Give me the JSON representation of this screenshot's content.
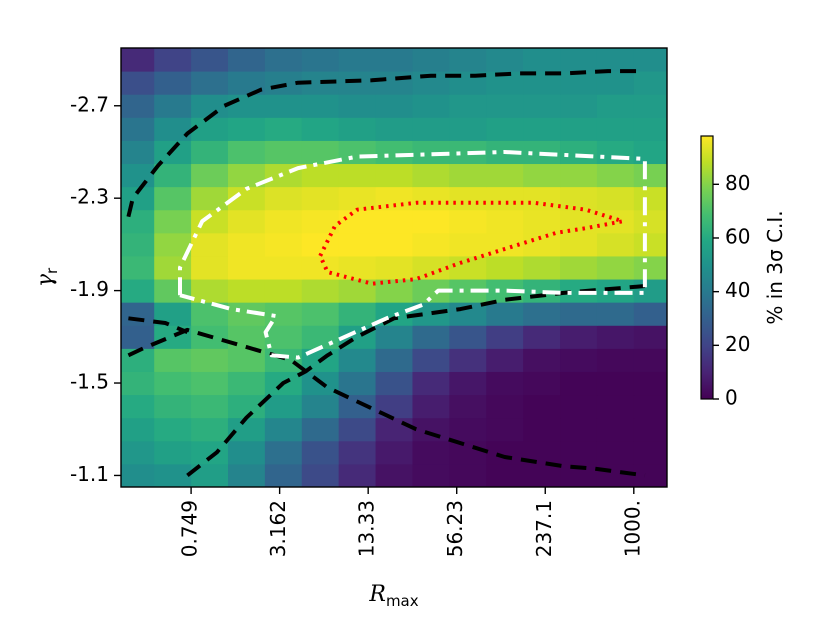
{
  "chart_data": {
    "type": "heatmap",
    "title": "",
    "xlabel": {
      "main": "R",
      "sub": "max"
    },
    "ylabel": {
      "main": "γ",
      "sub": "r"
    },
    "x_tick_labels": [
      "0.749",
      "3.162",
      "13.33",
      "56.23",
      "237.1",
      "1000."
    ],
    "y_tick_labels": [
      "-2.7",
      "-2.3",
      "-1.9",
      "-1.5",
      "-1.1"
    ],
    "x_scale": "log",
    "x_range_log10": [
      -0.6,
      3.1
    ],
    "y_range": [
      -1.05,
      -2.95
    ],
    "colorbar": {
      "label": "% in 3σ C.I.",
      "colormap": "viridis",
      "range": [
        0,
        98
      ],
      "ticks": [
        0,
        20,
        40,
        60,
        80
      ]
    },
    "x_log10_centers": [
      -0.5,
      -0.25,
      0.0,
      0.25,
      0.5,
      0.75,
      1.0,
      1.25,
      1.5,
      1.75,
      2.0,
      2.25,
      2.5,
      2.75,
      3.0
    ],
    "y_centers": [
      -1.1,
      -1.2,
      -1.3,
      -1.4,
      -1.5,
      -1.6,
      -1.7,
      -1.8,
      -1.9,
      -2.0,
      -2.1,
      -2.2,
      -2.3,
      -2.4,
      -2.5,
      -2.6,
      -2.7,
      -2.8,
      -2.9
    ],
    "values": [
      [
        48,
        50,
        55,
        44,
        32,
        22,
        12,
        5,
        3,
        2,
        1,
        1,
        1,
        1,
        1
      ],
      [
        52,
        56,
        58,
        48,
        36,
        25,
        15,
        7,
        3,
        2,
        1,
        1,
        1,
        1,
        1
      ],
      [
        56,
        60,
        62,
        55,
        45,
        34,
        22,
        10,
        5,
        3,
        2,
        1,
        1,
        1,
        1
      ],
      [
        60,
        64,
        66,
        62,
        54,
        44,
        30,
        18,
        8,
        4,
        2,
        1,
        1,
        1,
        1
      ],
      [
        64,
        68,
        70,
        66,
        60,
        50,
        38,
        25,
        12,
        6,
        3,
        2,
        1,
        1,
        1
      ],
      [
        62,
        72,
        74,
        72,
        66,
        58,
        46,
        34,
        22,
        14,
        8,
        4,
        3,
        2,
        2
      ],
      [
        30,
        60,
        68,
        72,
        70,
        66,
        56,
        44,
        34,
        26,
        18,
        12,
        8,
        6,
        5
      ],
      [
        32,
        56,
        70,
        74,
        72,
        70,
        64,
        58,
        52,
        46,
        40,
        36,
        34,
        34,
        30
      ],
      [
        60,
        74,
        86,
        88,
        88,
        86,
        84,
        80,
        76,
        72,
        68,
        64,
        60,
        58,
        54
      ],
      [
        66,
        84,
        94,
        96,
        96,
        96,
        95,
        94,
        92,
        90,
        88,
        86,
        84,
        82,
        80
      ],
      [
        64,
        82,
        94,
        96,
        97,
        98,
        98,
        98,
        97,
        96,
        96,
        95,
        94,
        92,
        90
      ],
      [
        62,
        78,
        90,
        94,
        96,
        97,
        98,
        98,
        98,
        97,
        96,
        95,
        94,
        94,
        92
      ],
      [
        56,
        72,
        84,
        90,
        93,
        94,
        95,
        96,
        95,
        94,
        94,
        94,
        93,
        92,
        90
      ],
      [
        50,
        64,
        76,
        82,
        86,
        88,
        88,
        88,
        86,
        84,
        84,
        82,
        82,
        80,
        78
      ],
      [
        44,
        56,
        64,
        70,
        72,
        72,
        70,
        68,
        66,
        66,
        64,
        64,
        62,
        60,
        58
      ],
      [
        38,
        48,
        56,
        58,
        60,
        58,
        56,
        54,
        54,
        54,
        56,
        56,
        56,
        56,
        56
      ],
      [
        32,
        40,
        48,
        50,
        50,
        50,
        48,
        48,
        50,
        52,
        52,
        52,
        52,
        54,
        54
      ],
      [
        24,
        30,
        36,
        40,
        42,
        44,
        44,
        44,
        46,
        48,
        50,
        50,
        50,
        50,
        52
      ],
      [
        12,
        20,
        26,
        32,
        36,
        38,
        40,
        40,
        42,
        44,
        46,
        48,
        48,
        48,
        48
      ]
    ],
    "contours": [
      {
        "name": "black-dashed-upper",
        "style": "dashed",
        "color": "#000000",
        "points": [
          [
            -0.55,
            -2.22
          ],
          [
            -0.52,
            -2.3
          ],
          [
            -0.35,
            -2.44
          ],
          [
            -0.15,
            -2.58
          ],
          [
            0.1,
            -2.7
          ],
          [
            0.35,
            -2.77
          ],
          [
            0.6,
            -2.8
          ],
          [
            1.1,
            -2.81
          ],
          [
            1.5,
            -2.83
          ],
          [
            1.8,
            -2.83
          ],
          [
            2.1,
            -2.84
          ],
          [
            2.4,
            -2.84
          ],
          [
            2.7,
            -2.85
          ],
          [
            2.95,
            -2.85
          ]
        ]
      },
      {
        "name": "black-dashed-lower",
        "style": "dashed",
        "color": "#000000",
        "points": [
          [
            -0.55,
            -1.78
          ],
          [
            -0.3,
            -1.76
          ],
          [
            -0.15,
            -1.72
          ]
        ]
      },
      {
        "name": "black-dashed-lower-2",
        "style": "dashed",
        "color": "#000000",
        "points": [
          [
            -0.55,
            -1.62
          ],
          [
            -0.45,
            -1.65
          ],
          [
            -0.15,
            -1.73
          ],
          [
            0.55,
            -1.6
          ],
          [
            0.8,
            -1.48
          ],
          [
            1.0,
            -1.42
          ],
          [
            1.4,
            -1.3
          ],
          [
            2.0,
            -1.18
          ],
          [
            2.4,
            -1.14
          ],
          [
            2.6,
            -1.13
          ],
          [
            2.95,
            -1.1
          ]
        ]
      },
      {
        "name": "black-dashed-lower-3",
        "style": "dashed",
        "color": "#000000",
        "points": [
          [
            -0.15,
            -1.1
          ],
          [
            0.05,
            -1.2
          ],
          [
            0.25,
            -1.35
          ],
          [
            0.5,
            -1.5
          ],
          [
            0.65,
            -1.55
          ],
          [
            0.8,
            -1.62
          ],
          [
            1.0,
            -1.7
          ],
          [
            1.25,
            -1.78
          ],
          [
            1.7,
            -1.82
          ],
          [
            2.0,
            -1.86
          ],
          [
            2.4,
            -1.89
          ],
          [
            2.95,
            -1.92
          ]
        ]
      },
      {
        "name": "white-dashdot",
        "style": "dashdot",
        "color": "#ffffff",
        "points": [
          [
            -0.2,
            -1.88
          ],
          [
            -0.2,
            -2.0
          ],
          [
            -0.05,
            -2.2
          ],
          [
            0.25,
            -2.34
          ],
          [
            0.6,
            -2.43
          ],
          [
            1.0,
            -2.48
          ],
          [
            1.5,
            -2.49
          ],
          [
            2.0,
            -2.5
          ],
          [
            2.95,
            -2.47
          ],
          [
            2.95,
            -1.89
          ],
          [
            2.4,
            -1.89
          ],
          [
            2.0,
            -1.9
          ],
          [
            1.55,
            -1.9
          ],
          [
            1.45,
            -1.84
          ],
          [
            1.2,
            -1.78
          ],
          [
            0.6,
            -1.61
          ],
          [
            0.42,
            -1.62
          ],
          [
            0.38,
            -1.72
          ],
          [
            0.45,
            -1.79
          ],
          [
            0.15,
            -1.82
          ],
          [
            -0.2,
            -1.88
          ]
        ]
      },
      {
        "name": "red-dotted",
        "style": "dotted",
        "color": "#ff0000",
        "points": [
          [
            0.75,
            -2.05
          ],
          [
            0.85,
            -2.18
          ],
          [
            1.0,
            -2.25
          ],
          [
            1.4,
            -2.28
          ],
          [
            1.8,
            -2.28
          ],
          [
            2.2,
            -2.28
          ],
          [
            2.55,
            -2.25
          ],
          [
            2.8,
            -2.2
          ],
          [
            2.55,
            -2.17
          ],
          [
            2.35,
            -2.15
          ],
          [
            2.0,
            -2.08
          ],
          [
            1.7,
            -2.02
          ],
          [
            1.4,
            -1.95
          ],
          [
            1.1,
            -1.93
          ],
          [
            0.8,
            -1.98
          ],
          [
            0.75,
            -2.05
          ]
        ]
      }
    ]
  }
}
